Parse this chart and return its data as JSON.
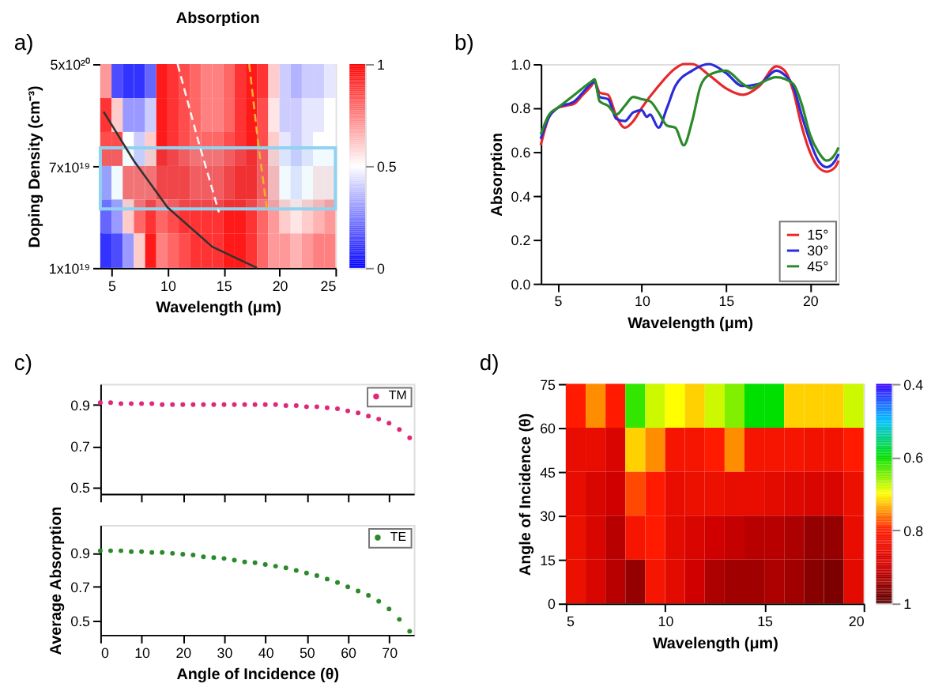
{
  "chart_data": [
    {
      "type": "heatmap",
      "title": "Absorption",
      "xlabel": "Wavelength (μm)",
      "ylabel": "Doping Density (cm⁻³)",
      "annotations": [
        "a)"
      ],
      "x": [
        4.5,
        5.5,
        6.5,
        7.5,
        8.5,
        9.5,
        10.5,
        11.5,
        12.5,
        13.5,
        14.5,
        15.5,
        16.5,
        17.5,
        18.5,
        19.5,
        20.5,
        21.5,
        22.5,
        23.5,
        24.5
      ],
      "y": [
        3.6e+20,
        1.88e+20,
        9.8e+19,
        5.1e+19,
        2.7e+19,
        1.39e+19
      ],
      "cells": [
        [
          0.7,
          0.15,
          0.1,
          0.1,
          0.2,
          0.95,
          0.9,
          0.85,
          0.8,
          0.75,
          0.75,
          0.8,
          0.9,
          0.95,
          0.9,
          0.6,
          0.4,
          0.35,
          0.4,
          0.4,
          0.45
        ],
        [
          0.9,
          0.6,
          0.3,
          0.3,
          0.4,
          0.95,
          0.9,
          0.85,
          0.8,
          0.75,
          0.75,
          0.8,
          0.9,
          0.95,
          0.85,
          0.55,
          0.4,
          0.4,
          0.45,
          0.45,
          0.5
        ],
        [
          0.85,
          0.85,
          0.5,
          0.4,
          0.6,
          0.95,
          0.9,
          0.85,
          0.8,
          0.8,
          0.8,
          0.85,
          0.9,
          0.95,
          0.85,
          0.6,
          0.45,
          0.4,
          0.45,
          0.5,
          0.5
        ],
        [
          0.3,
          0.5,
          0.8,
          0.8,
          0.8,
          0.9,
          0.9,
          0.9,
          0.85,
          0.85,
          0.85,
          0.9,
          0.95,
          0.95,
          0.85,
          0.65,
          0.5,
          0.45,
          0.5,
          0.55,
          0.55
        ],
        [
          0.2,
          0.3,
          0.6,
          0.8,
          0.9,
          0.8,
          0.85,
          0.9,
          0.9,
          0.9,
          0.9,
          0.95,
          0.95,
          0.9,
          0.8,
          0.7,
          0.6,
          0.55,
          0.6,
          0.65,
          0.7
        ],
        [
          0.1,
          0.15,
          0.3,
          0.6,
          0.95,
          0.75,
          0.8,
          0.85,
          0.9,
          0.9,
          0.9,
          0.95,
          0.95,
          0.9,
          0.8,
          0.7,
          0.7,
          0.65,
          0.7,
          0.75,
          0.75
        ]
      ],
      "xlim": [
        4,
        25
      ],
      "xticks": [
        5,
        10,
        15,
        20,
        25
      ],
      "ylim": [
        1e+19,
        5e+20
      ],
      "yticks": [
        {
          "value": 1e+19,
          "label": "1x10¹⁹"
        },
        {
          "value": 7e+19,
          "label": "7x10¹⁹"
        },
        {
          "value": 5e+20,
          "label": "5x10²⁰"
        }
      ],
      "log": "y",
      "clim": [
        0,
        1
      ],
      "cticks": [
        0,
        0.5,
        1
      ],
      "bands": [
        {
          "axis": "y",
          "from": 3.1e+19,
          "to": 1e+20,
          "color": "#8fd3f0"
        }
      ],
      "series": [
        {
          "type": "line",
          "color": "#333333",
          "line_style": "solid",
          "x": [
            4.3,
            7,
            10,
            14,
            18
          ],
          "values": [
            2e+20,
            7.8e+19,
            3.2e+19,
            1.5e+19,
            1e+19
          ]
        },
        {
          "type": "line",
          "color": "#f5f5f5",
          "line_style": "dashed",
          "x": [
            10.9,
            12.8,
            14.6
          ],
          "values": [
            5e+20,
            1.1e+20,
            2.9e+19
          ]
        },
        {
          "type": "line",
          "color": "#f0b030",
          "line_style": "dashed",
          "x": [
            17.3,
            18.1,
            18.9
          ],
          "values": [
            5e+20,
            1.1e+20,
            3e+19
          ]
        }
      ]
    },
    {
      "type": "line",
      "xlabel": "Wavelength (μm)",
      "ylabel": "Absorption",
      "annotations": [
        "b)"
      ],
      "legend": "bottom right",
      "line_style": "solid",
      "xlim": [
        4,
        21.7
      ],
      "xticks": [
        5,
        10,
        15,
        20
      ],
      "ylim": [
        0,
        1
      ],
      "yticks": [
        {
          "value": 0,
          "label": "0.0"
        },
        {
          "value": 0.2,
          "label": "0.2"
        },
        {
          "value": 0.4,
          "label": "0.4"
        },
        {
          "value": 0.6,
          "label": "0.6"
        },
        {
          "value": 0.8,
          "label": "0.8"
        },
        {
          "value": 1,
          "label": "1.0"
        }
      ],
      "series": [
        {
          "name": "15°",
          "color": "#e8282b",
          "x": [
            4,
            4.5,
            5,
            5.5,
            6,
            6.5,
            7,
            7.2,
            7.5,
            8,
            8.5,
            9,
            9.5,
            10,
            11,
            12,
            12.5,
            13,
            14,
            15,
            16,
            17,
            18,
            18.5,
            19,
            19.5,
            20,
            20.5,
            21,
            21.5,
            21.7
          ],
          "values": [
            0.63,
            0.76,
            0.8,
            0.81,
            0.82,
            0.86,
            0.9,
            0.92,
            0.87,
            0.86,
            0.76,
            0.71,
            0.74,
            0.8,
            0.9,
            0.98,
            1.0,
            1.0,
            0.95,
            0.89,
            0.86,
            0.9,
            0.99,
            0.97,
            0.88,
            0.72,
            0.6,
            0.53,
            0.51,
            0.53,
            0.56
          ]
        },
        {
          "name": "30°",
          "color": "#2b2bd9",
          "x": [
            4,
            4.5,
            5,
            6,
            7,
            7.2,
            7.5,
            8,
            8.5,
            9,
            9.5,
            10,
            10.3,
            10.5,
            11,
            11.5,
            12,
            13,
            14,
            15,
            16,
            17,
            18,
            18.5,
            19,
            19.5,
            20,
            20.5,
            21,
            21.5,
            21.7
          ],
          "values": [
            0.66,
            0.76,
            0.8,
            0.83,
            0.91,
            0.92,
            0.85,
            0.84,
            0.75,
            0.74,
            0.78,
            0.79,
            0.76,
            0.77,
            0.71,
            0.8,
            0.9,
            0.97,
            1.0,
            0.96,
            0.9,
            0.91,
            0.97,
            0.95,
            0.9,
            0.77,
            0.65,
            0.56,
            0.53,
            0.56,
            0.59
          ]
        },
        {
          "name": "45°",
          "color": "#2a8a2a",
          "x": [
            4,
            4.5,
            5,
            6,
            7,
            7.2,
            7.5,
            8,
            8.5,
            9,
            9.5,
            10,
            10.5,
            11,
            11.5,
            12,
            12.5,
            13,
            13.5,
            14,
            15,
            16,
            16.5,
            17,
            18,
            19,
            19.5,
            20,
            20.5,
            21,
            21.5,
            21.7
          ],
          "values": [
            0.68,
            0.77,
            0.8,
            0.86,
            0.92,
            0.93,
            0.83,
            0.81,
            0.77,
            0.81,
            0.85,
            0.84,
            0.83,
            0.78,
            0.72,
            0.71,
            0.63,
            0.74,
            0.9,
            0.95,
            0.97,
            0.91,
            0.89,
            0.91,
            0.94,
            0.91,
            0.82,
            0.68,
            0.6,
            0.56,
            0.59,
            0.62
          ]
        }
      ]
    },
    {
      "type": "scatter",
      "annotations": [
        "c)"
      ],
      "legend": "top right",
      "marker": "circle",
      "tick_labels": "y",
      "xlim": [
        0,
        76
      ],
      "xticks": [
        0,
        10,
        20,
        30,
        40,
        50,
        60,
        70
      ],
      "ylim": [
        0.47,
        1.0
      ],
      "yticks": [
        0.5,
        0.7,
        0.9
      ],
      "x": [
        0,
        2.5,
        5,
        7.5,
        10,
        12.5,
        15,
        17.5,
        20,
        22.5,
        25,
        27.5,
        30,
        32.5,
        35,
        37.5,
        40,
        42.5,
        45,
        47.5,
        50,
        52.5,
        55,
        57.5,
        60,
        62.5,
        65,
        67.5,
        70,
        72.5,
        75
      ],
      "series": [
        {
          "name": "TM",
          "color": "#e0287a",
          "values": [
            0.91,
            0.91,
            0.905,
            0.905,
            0.905,
            0.905,
            0.9,
            0.9,
            0.9,
            0.9,
            0.9,
            0.9,
            0.9,
            0.9,
            0.9,
            0.9,
            0.9,
            0.9,
            0.895,
            0.895,
            0.89,
            0.89,
            0.885,
            0.88,
            0.87,
            0.86,
            0.845,
            0.83,
            0.81,
            0.78,
            0.74
          ]
        }
      ]
    },
    {
      "type": "scatter",
      "xlabel": "Angle of Incidence (θ)",
      "ylabel": "Average Absorption",
      "legend": "top right",
      "marker": "circle",
      "xlim": [
        0,
        76
      ],
      "xticks": [
        0,
        10,
        20,
        30,
        40,
        50,
        60,
        70
      ],
      "ylim": [
        0.42,
        1.06
      ],
      "yticks": [
        0.5,
        0.7,
        0.9
      ],
      "x": [
        0,
        2.5,
        5,
        7.5,
        10,
        12.5,
        15,
        17.5,
        20,
        22.5,
        25,
        27.5,
        30,
        32.5,
        35,
        37.5,
        40,
        42.5,
        45,
        47.5,
        50,
        52.5,
        55,
        57.5,
        60,
        62.5,
        65,
        67.5,
        70,
        72.5,
        75
      ],
      "series": [
        {
          "name": "TE",
          "color": "#2a8a2a",
          "values": [
            0.91,
            0.91,
            0.91,
            0.905,
            0.905,
            0.9,
            0.9,
            0.895,
            0.89,
            0.885,
            0.875,
            0.87,
            0.865,
            0.855,
            0.845,
            0.84,
            0.83,
            0.82,
            0.81,
            0.795,
            0.78,
            0.765,
            0.745,
            0.725,
            0.7,
            0.675,
            0.65,
            0.615,
            0.57,
            0.51,
            0.44
          ]
        }
      ]
    },
    {
      "type": "heatmap",
      "xlabel": "Wavelength (μm)",
      "ylabel": "Angle of Incidence (θ)",
      "annotations": [
        "d)"
      ],
      "x": [
        5.5,
        6.5,
        7.5,
        8.5,
        9.5,
        10.5,
        11.5,
        12.5,
        13.5,
        14.5,
        15.5,
        16.5,
        17.5,
        18.5,
        19.5
      ],
      "y": [
        67.5,
        52.5,
        37.5,
        22.5,
        7.5
      ],
      "cells": [
        [
          0.8,
          0.75,
          0.8,
          0.62,
          0.68,
          0.7,
          0.72,
          0.68,
          0.65,
          0.6,
          0.6,
          0.72,
          0.72,
          0.72,
          0.68
        ],
        [
          0.85,
          0.85,
          0.88,
          0.72,
          0.75,
          0.82,
          0.82,
          0.8,
          0.75,
          0.82,
          0.82,
          0.82,
          0.83,
          0.83,
          0.8
        ],
        [
          0.85,
          0.88,
          0.9,
          0.78,
          0.8,
          0.85,
          0.84,
          0.84,
          0.85,
          0.85,
          0.86,
          0.87,
          0.88,
          0.88,
          0.84
        ],
        [
          0.84,
          0.88,
          0.92,
          0.82,
          0.8,
          0.86,
          0.88,
          0.9,
          0.91,
          0.92,
          0.92,
          0.93,
          0.95,
          0.95,
          0.85
        ],
        [
          0.84,
          0.88,
          0.92,
          0.95,
          0.82,
          0.86,
          0.9,
          0.93,
          0.94,
          0.94,
          0.93,
          0.94,
          0.96,
          0.97,
          0.86
        ]
      ],
      "xlim": [
        5,
        20
      ],
      "xticks": [
        5,
        10,
        15,
        20
      ],
      "ylim": [
        0,
        75
      ],
      "yticks": [
        0,
        15,
        30,
        45,
        60,
        75
      ],
      "clim": [
        1,
        0.4
      ],
      "cticks": [
        0.4,
        0.6,
        0.8,
        1
      ]
    }
  ]
}
